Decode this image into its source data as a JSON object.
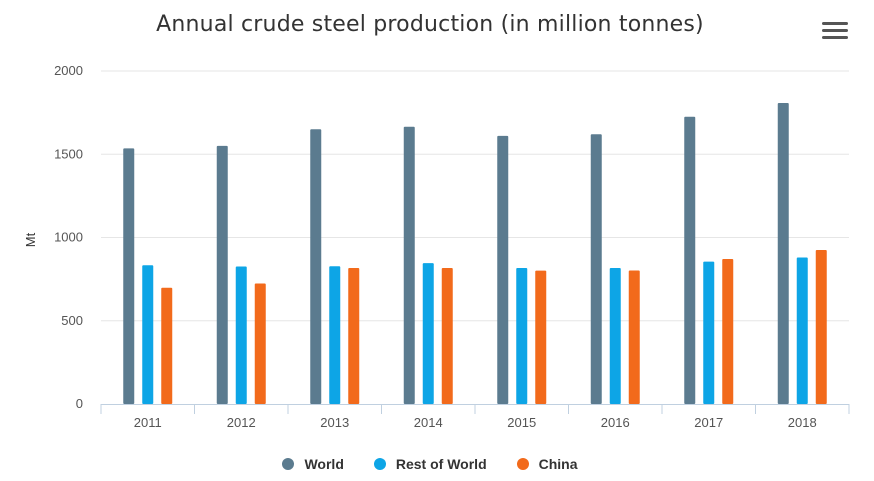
{
  "chart_data": {
    "type": "bar",
    "title": "Annual crude steel production (in million tonnes)",
    "xlabel": "",
    "ylabel": "Mt",
    "ylim": [
      0,
      2000
    ],
    "yticks": [
      0,
      500,
      1000,
      1500,
      2000
    ],
    "grid": true,
    "legend_position": "bottom",
    "categories": [
      "2011",
      "2012",
      "2013",
      "2014",
      "2015",
      "2016",
      "2017",
      "2018"
    ],
    "series": [
      {
        "name": "World",
        "color": "#5b7b8f",
        "values": [
          1535,
          1550,
          1650,
          1665,
          1610,
          1620,
          1725,
          1808
        ]
      },
      {
        "name": "Rest of World",
        "color": "#0da5e6",
        "values": [
          833,
          826,
          827,
          846,
          817,
          817,
          855,
          880
        ]
      },
      {
        "name": "China",
        "color": "#f26a1b",
        "values": [
          698,
          724,
          817,
          817,
          801,
          802,
          871,
          925
        ]
      }
    ]
  },
  "menu": {
    "icon": "hamburger-menu-icon"
  }
}
